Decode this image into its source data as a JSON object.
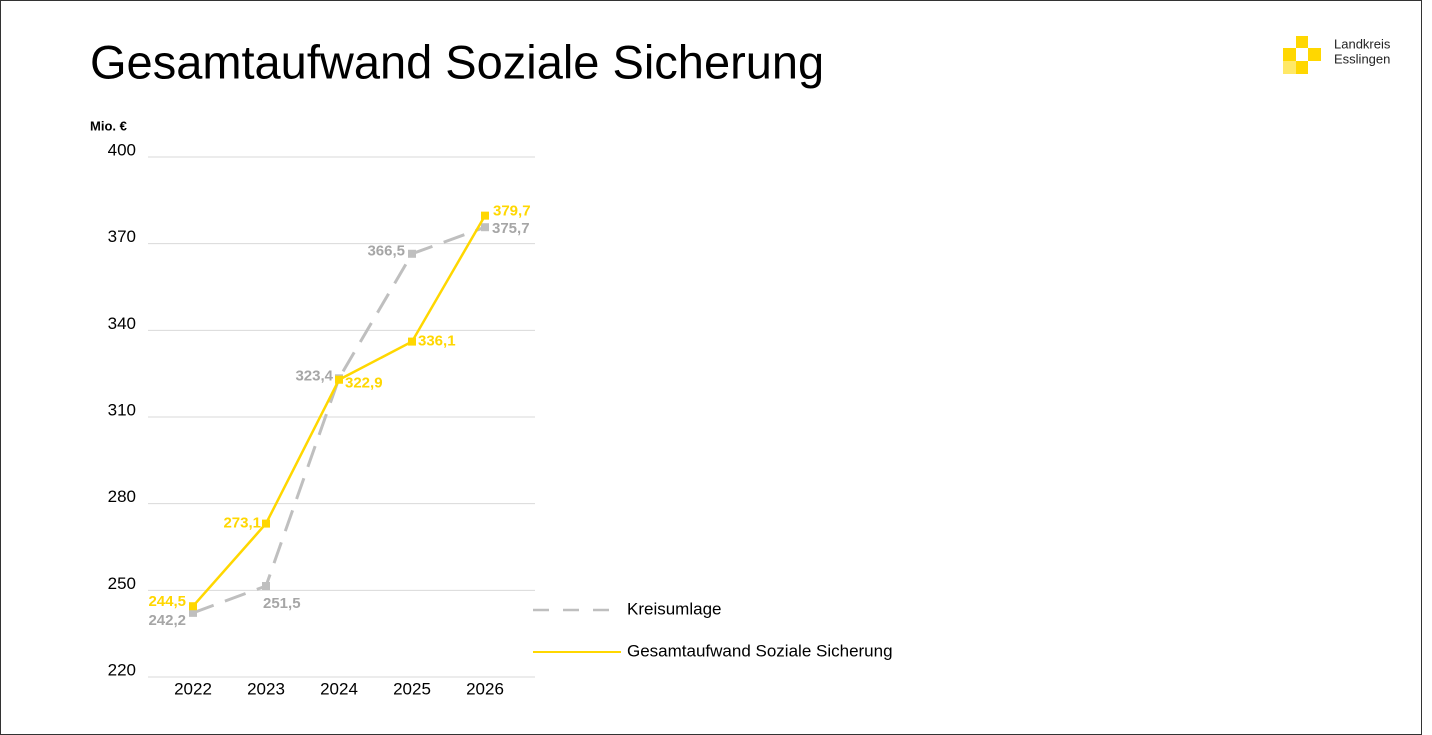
{
  "chart_data": {
    "type": "line",
    "title": "Gesamtaufwand Soziale Sicherung",
    "brand": [
      "Landkreis",
      "Esslingen"
    ],
    "y_label": "Mio. €",
    "categories": [
      "2022",
      "2023",
      "2024",
      "2025",
      "2026"
    ],
    "series": [
      {
        "name": "Kreisumlage",
        "color": "#bfbfbf",
        "label_color": "#a6a6a6",
        "dashed": true,
        "values": [
          242.2,
          251.5,
          323.4,
          366.5,
          375.7
        ],
        "value_labels": [
          "242,2",
          "251,5",
          "323,4",
          "366,5",
          "375,7"
        ]
      },
      {
        "name": "Gesamtaufwand Soziale Sicherung",
        "color": "#ffd700",
        "label_color": "#ffd700",
        "dashed": false,
        "values": [
          244.5,
          273.1,
          322.9,
          336.1,
          379.7
        ],
        "value_labels": [
          "244,5",
          "273,1",
          "322,9",
          "336,1",
          "379,7"
        ]
      }
    ],
    "ylim": [
      220,
      400
    ],
    "yticks": [
      220,
      250,
      280,
      310,
      340,
      370,
      400
    ],
    "grid": true,
    "legend": "right"
  }
}
